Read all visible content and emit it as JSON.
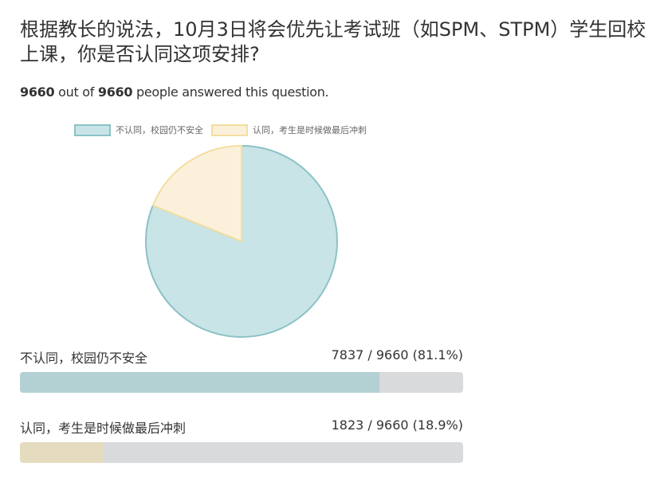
{
  "question": "根据教长的说法，10月3日将会优先让考试班（如SPM、STPM）学生回校上课，你是否认同这项安排?",
  "summary": {
    "answered": "9660",
    "out_of": "out of",
    "total": "9660",
    "suffix": "people answered this question."
  },
  "chart_data": {
    "type": "pie",
    "legend_placement": "top",
    "categories": [
      "不认同，校园仍不安全",
      "认同，考生是时候做最后冲刺"
    ],
    "values": [
      7837,
      1823
    ],
    "percents": [
      81.1,
      18.9
    ],
    "total": 9660,
    "colors": [
      "#c9e4e6",
      "#fbf1da"
    ],
    "border_colors": [
      "#8bc2c6",
      "#f3dea0"
    ]
  },
  "results": [
    {
      "label": "不认同，校园仍不安全",
      "count": "7837 / 9660 (81.1%)",
      "percent": 81.1,
      "color": "#b3d0d3"
    },
    {
      "label": "认同，考生是时候做最后冲刺",
      "count": "1823 / 9660 (18.9%)",
      "percent": 18.9,
      "color": "#e5dcc0"
    }
  ]
}
